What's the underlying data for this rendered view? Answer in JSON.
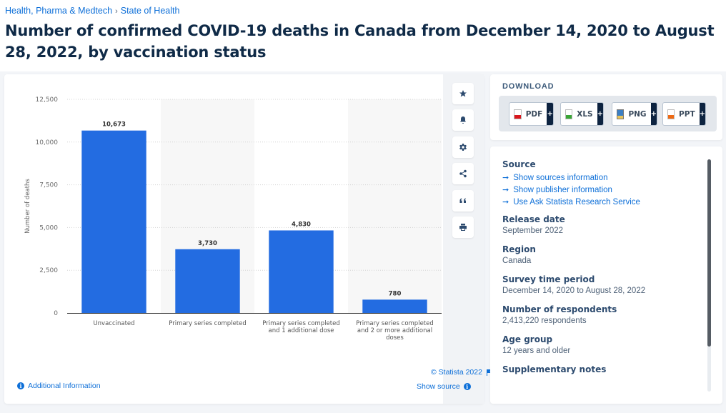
{
  "breadcrumb": {
    "items": [
      "Health, Pharma & Medtech",
      "State of Health"
    ],
    "separator": "›"
  },
  "page_title": "Number of confirmed COVID-19 deaths in Canada from December 14, 2020 to August 28, 2022, by vaccination status",
  "toolbar": {
    "icons": [
      "star-icon",
      "bell-icon",
      "gear-icon",
      "share-icon",
      "quote-icon",
      "print-icon"
    ]
  },
  "chart_footer": {
    "additional_info": "Additional Information",
    "copyright": "© Statista 2022",
    "show_source": "Show source"
  },
  "download": {
    "title": "DOWNLOAD",
    "buttons": [
      {
        "label": "PDF",
        "color": "#d9161c"
      },
      {
        "label": "XLS",
        "color": "#3aa536"
      },
      {
        "label": "PNG",
        "color": "#3b7fc4"
      },
      {
        "label": "PPT",
        "color": "#ee6a14"
      }
    ],
    "plus": "+"
  },
  "info": {
    "source_heading": "Source",
    "source_links": [
      "Show sources information",
      "Show publisher information",
      "Use Ask Statista Research Service"
    ],
    "arrow": "➞",
    "release_date_heading": "Release date",
    "release_date": "September 2022",
    "region_heading": "Region",
    "region": "Canada",
    "survey_period_heading": "Survey time period",
    "survey_period": "December 14, 2020 to August 28, 2022",
    "respondents_heading": "Number of respondents",
    "respondents": "2,413,220 respondents",
    "age_group_heading": "Age group",
    "age_group": "12 years and older",
    "supplementary_heading": "Supplementary notes"
  },
  "chart_data": {
    "type": "bar",
    "title": "Number of confirmed COVID-19 deaths in Canada from December 14, 2020 to August 28, 2022, by vaccination status",
    "xlabel": "",
    "ylabel": "Number of deaths",
    "categories": [
      [
        "Unvaccinated"
      ],
      [
        "Primary series completed"
      ],
      [
        "Primary series completed",
        "and 1 additional dose"
      ],
      [
        "Primary series completed",
        "and 2 or more additional",
        "doses"
      ]
    ],
    "values": [
      10673,
      3730,
      4830,
      780
    ],
    "value_labels": [
      "10,673",
      "3,730",
      "4,830",
      "780"
    ],
    "ylim": [
      0,
      12500
    ],
    "yticks": [
      0,
      2500,
      5000,
      7500,
      10000,
      12500
    ],
    "ytick_labels": [
      "0",
      "2,500",
      "5,000",
      "7,500",
      "10,000",
      "12,500"
    ],
    "grid": true,
    "bar_color": "#236ce1",
    "legend": "none"
  }
}
